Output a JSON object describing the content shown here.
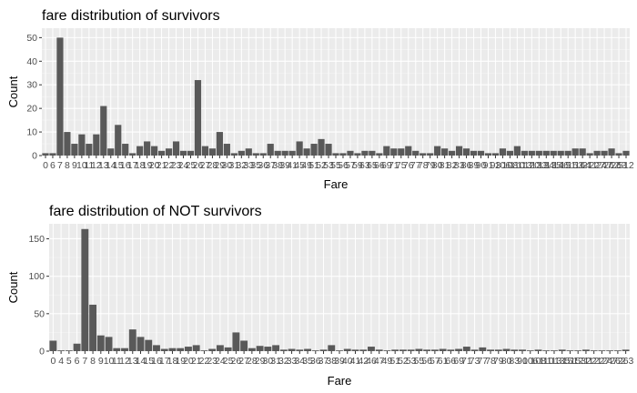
{
  "colors": {
    "panel": "#ebebeb",
    "grid_major": "#ffffff",
    "grid_minor": "#f5f5f5",
    "bar": "#595959",
    "tick": "#4d4d4d",
    "text": "#000000"
  },
  "chart_data": [
    {
      "type": "bar",
      "title": "fare distribution of survivors",
      "xlabel": "Fare",
      "ylabel": "Count",
      "ylim": [
        0,
        54
      ],
      "yticks": [
        0,
        10,
        20,
        30,
        40,
        50
      ],
      "grid": true,
      "tick_labels": [
        "0",
        "6",
        "7",
        "8",
        "9",
        "10",
        "11",
        "12",
        "13",
        "14",
        "15",
        "16",
        "17",
        "18",
        "19",
        "20",
        "21",
        "22",
        "23",
        "24",
        "25",
        "26",
        "27",
        "28",
        "29",
        "30",
        "31",
        "32",
        "33",
        "35",
        "36",
        "37",
        "38",
        "39",
        "41",
        "45",
        "49",
        "51",
        "52",
        "53",
        "55",
        "56",
        "57",
        "59",
        "63",
        "65",
        "66",
        "69",
        "71",
        "75",
        "76",
        "77",
        "78",
        "79",
        "80",
        "81",
        "82",
        "83",
        "86",
        "89",
        "90",
        "91",
        "93",
        "106",
        "108",
        "110",
        "113",
        "120",
        "133",
        "134",
        "135",
        "146",
        "151",
        "153",
        "164",
        "211",
        "227",
        "247",
        "262",
        "263",
        "512"
      ],
      "values": [
        1,
        1,
        50,
        10,
        5,
        9,
        5,
        9,
        21,
        3,
        13,
        5,
        1,
        4,
        6,
        4,
        2,
        3,
        6,
        2,
        2,
        32,
        4,
        3,
        10,
        5,
        1,
        2,
        3,
        1,
        1,
        5,
        2,
        2,
        2,
        6,
        3,
        5,
        7,
        5,
        1,
        1,
        2,
        1,
        2,
        2,
        1,
        4,
        3,
        3,
        4,
        2,
        1,
        1,
        4,
        3,
        2,
        4,
        3,
        2,
        2,
        1,
        1,
        3,
        2,
        4,
        2,
        2,
        2,
        2,
        2,
        2,
        2,
        3,
        3,
        1,
        2,
        2,
        3,
        1,
        2
      ]
    },
    {
      "type": "bar",
      "title": "fare distribution of NOT survivors",
      "xlabel": "Fare",
      "ylabel": "Count",
      "ylim": [
        0,
        170
      ],
      "yticks": [
        0,
        50,
        100,
        150
      ],
      "grid": true,
      "tick_labels": [
        "0",
        "4",
        "5",
        "6",
        "7",
        "8",
        "9",
        "10",
        "11",
        "12",
        "13",
        "14",
        "15",
        "16",
        "17",
        "18",
        "19",
        "20",
        "21",
        "22",
        "23",
        "24",
        "25",
        "26",
        "27",
        "28",
        "29",
        "30",
        "31",
        "32",
        "33",
        "34",
        "35",
        "36",
        "37",
        "38",
        "39",
        "40",
        "41",
        "42",
        "46",
        "47",
        "49",
        "51",
        "52",
        "53",
        "55",
        "56",
        "57",
        "61",
        "66",
        "69",
        "71",
        "73",
        "77",
        "78",
        "79",
        "80",
        "83",
        "90",
        "106",
        "108",
        "110",
        "113",
        "135",
        "151",
        "153",
        "211",
        "221",
        "227",
        "247",
        "262",
        "263"
      ],
      "values": [
        14,
        1,
        1,
        10,
        163,
        62,
        21,
        19,
        4,
        4,
        29,
        19,
        15,
        8,
        3,
        4,
        4,
        6,
        8,
        1,
        3,
        8,
        5,
        25,
        14,
        4,
        7,
        6,
        8,
        2,
        3,
        2,
        3,
        1,
        2,
        8,
        1,
        3,
        2,
        2,
        6,
        2,
        1,
        2,
        2,
        2,
        3,
        2,
        2,
        3,
        2,
        3,
        6,
        2,
        5,
        2,
        2,
        3,
        2,
        2,
        1,
        2,
        1,
        1,
        2,
        1,
        1,
        2,
        1,
        1,
        1,
        1,
        2
      ]
    }
  ]
}
